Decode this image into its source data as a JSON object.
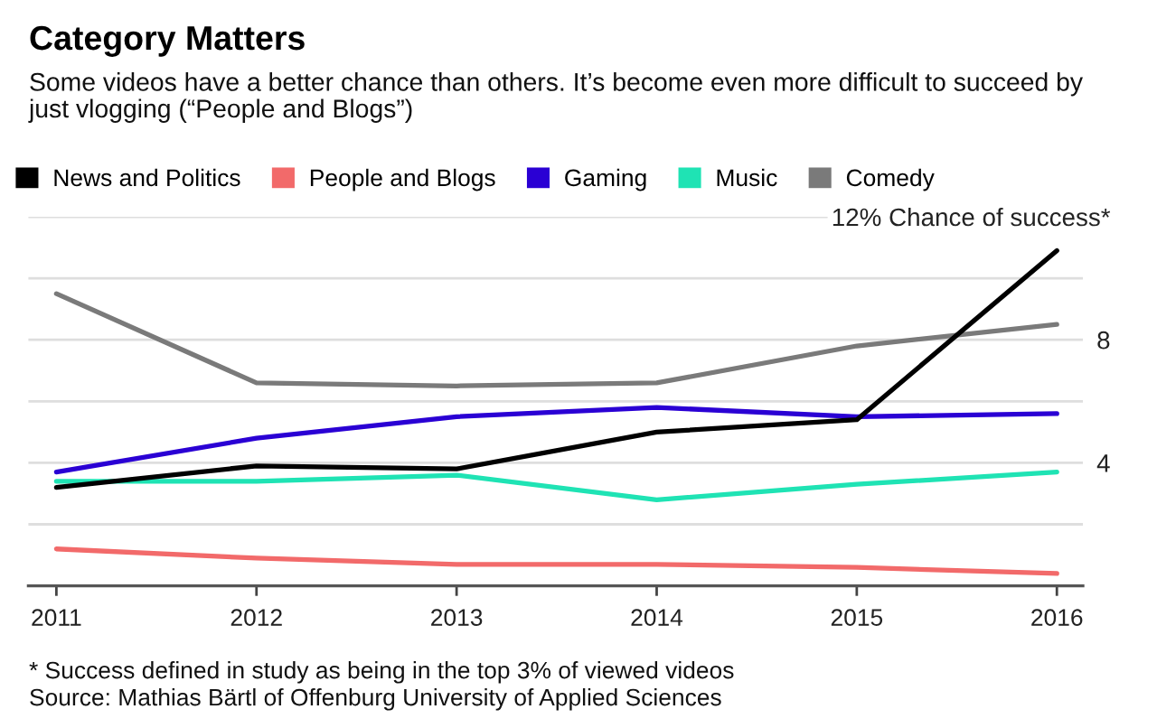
{
  "chart_data": {
    "type": "line",
    "title": "Category Matters",
    "subtitle": "Some videos have a better chance than others. It’s become even more difficult to succeed by just vlogging (“People and Blogs”)",
    "x": [
      2011,
      2012,
      2013,
      2014,
      2015,
      2016
    ],
    "xlim": [
      2010.86,
      2016.13
    ],
    "xticks": [
      2011,
      2012,
      2013,
      2014,
      2015,
      2016
    ],
    "ylim": [
      0,
      12
    ],
    "yticks": [
      {
        "value": 2,
        "label": null
      },
      4,
      {
        "value": 6,
        "label": null
      },
      8,
      {
        "value": 10,
        "label": null
      },
      {
        "value": 12,
        "label": "12% Chance of success*"
      }
    ],
    "grid": "y",
    "legend": "top",
    "line_style": "solid",
    "marker": "none",
    "series": [
      {
        "name": "News and Politics",
        "color": "#000000",
        "values": [
          3.2,
          3.9,
          3.8,
          5.0,
          5.4,
          10.9
        ]
      },
      {
        "name": "People and Blogs",
        "color": "#f26a6a",
        "values": [
          1.2,
          0.9,
          0.7,
          0.7,
          0.6,
          0.4
        ]
      },
      {
        "name": "Gaming",
        "color": "#2a00d4",
        "values": [
          3.7,
          4.8,
          5.5,
          5.8,
          5.5,
          5.6
        ]
      },
      {
        "name": "Music",
        "color": "#1fe3b4",
        "values": [
          3.4,
          3.4,
          3.6,
          2.8,
          3.3,
          3.7
        ]
      },
      {
        "name": "Comedy",
        "color": "#7a7a7a",
        "values": [
          9.5,
          6.6,
          6.5,
          6.6,
          7.8,
          8.5
        ]
      }
    ],
    "annotations": [
      "* Success defined in study as being in the top 3% of viewed videos",
      "Source: Mathias Bärtl of Offenburg University of Applied Sciences"
    ]
  }
}
